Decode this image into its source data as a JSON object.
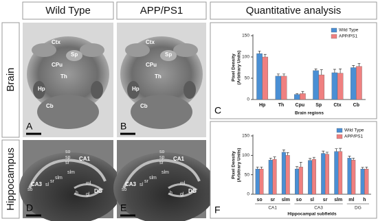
{
  "columns": [
    "Wild Type",
    "APP/PS1",
    "Quantitative analysis"
  ],
  "rows": [
    "Brain",
    "Hippocampus"
  ],
  "panel_letters": [
    "A",
    "B",
    "C",
    "D",
    "E",
    "F"
  ],
  "brain_labels": [
    "Ctx",
    "Sp",
    "CPu",
    "Th",
    "Hp",
    "Cb"
  ],
  "hippocampus_labels": [
    "so",
    "sp",
    "sr",
    "CA1",
    "slm",
    "CA3",
    "sl",
    "sr",
    "slm",
    "so",
    "ml",
    "DG",
    "h",
    "gl"
  ],
  "chart_data": [
    {
      "type": "bar",
      "y_label": [
        "Pixel Density",
        "(Arbitrary Units)"
      ],
      "x_label": "Brain regions",
      "categories": [
        "Hp",
        "Th",
        "Cpu",
        "Sp",
        "Ctx",
        "Cb"
      ],
      "series": [
        {
          "name": "Wild Type",
          "color": "#4a8fd4",
          "values": [
            108,
            55,
            12,
            68,
            63,
            75
          ],
          "errors": [
            6,
            5,
            2,
            4,
            8,
            5
          ]
        },
        {
          "name": "APP/PS1",
          "color": "#ef8080",
          "values": [
            100,
            55,
            14,
            58,
            62,
            78
          ],
          "errors": [
            6,
            5,
            5,
            12,
            10,
            7
          ]
        }
      ],
      "ylim": [
        0,
        150
      ],
      "yticks": [
        0,
        50,
        100,
        150
      ],
      "legend": "top-right"
    },
    {
      "type": "bar",
      "y_label": [
        "Pixel Density",
        "(Arbitrary Units)"
      ],
      "x_label": "Hippocampal subfields",
      "categories": [
        "so",
        "sr",
        "slm",
        "so",
        "sl",
        "sr",
        "slm",
        "ml",
        "h"
      ],
      "group_labels": [
        "CA1",
        "CA3",
        "DG"
      ],
      "series": [
        {
          "name": "Wild Type",
          "color": "#4a8fd4",
          "values": [
            65,
            88,
            108,
            65,
            87,
            105,
            110,
            93,
            65
          ],
          "errors": [
            5,
            5,
            6,
            6,
            5,
            6,
            7,
            5,
            4
          ]
        },
        {
          "name": "APP/PS1",
          "color": "#ef8080",
          "values": [
            65,
            90,
            100,
            70,
            90,
            103,
            110,
            88,
            65
          ],
          "errors": [
            5,
            6,
            7,
            12,
            5,
            5,
            8,
            5,
            5
          ]
        }
      ],
      "ylim": [
        0,
        150
      ],
      "yticks": [
        0,
        50,
        100,
        150
      ],
      "legend": "top-right"
    }
  ]
}
